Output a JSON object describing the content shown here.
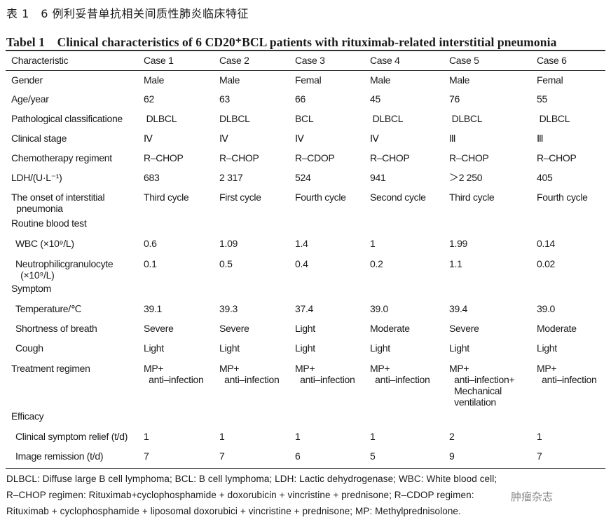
{
  "title_cn": "表 1　6 例利妥昔单抗相关间质性肺炎临床特征",
  "title_en": "Tabel 1　Clinical characteristics of 6 CD20⁺BCL patients with rituximab-related interstitial pneumonia",
  "columns": [
    "Characteristic",
    "Case 1",
    "Case 2",
    "Case 3",
    "Case 4",
    "Case 5",
    "Case 6"
  ],
  "rows": [
    {
      "label": [
        "Gender"
      ],
      "indent": false,
      "values": [
        [
          "Male"
        ],
        [
          "Male"
        ],
        [
          "Femal"
        ],
        [
          "Male"
        ],
        [
          "Male"
        ],
        [
          "Femal"
        ]
      ]
    },
    {
      "label": [
        "Age/year"
      ],
      "indent": false,
      "values": [
        [
          "62"
        ],
        [
          "63"
        ],
        [
          "66"
        ],
        [
          "45"
        ],
        [
          "76"
        ],
        [
          "55"
        ]
      ]
    },
    {
      "label": [
        "Pathological classificatione"
      ],
      "indent": false,
      "values": [
        [
          " DLBCL"
        ],
        [
          "DLBCL"
        ],
        [
          "BCL"
        ],
        [
          " DLBCL"
        ],
        [
          " DLBCL"
        ],
        [
          " DLBCL"
        ]
      ]
    },
    {
      "label": [
        "Clinical stage"
      ],
      "indent": false,
      "values": [
        [
          "Ⅳ"
        ],
        [
          "Ⅳ"
        ],
        [
          "Ⅳ"
        ],
        [
          "Ⅳ"
        ],
        [
          "Ⅲ"
        ],
        [
          "Ⅲ"
        ]
      ]
    },
    {
      "label": [
        "Chemotherapy regiment"
      ],
      "indent": false,
      "values": [
        [
          "R–CHOP"
        ],
        [
          "R–CHOP"
        ],
        [
          "R–CDOP"
        ],
        [
          "R–CHOP"
        ],
        [
          "R–CHOP"
        ],
        [
          "R–CHOP"
        ]
      ]
    },
    {
      "label": [
        "LDH/(U·L⁻¹)"
      ],
      "indent": false,
      "values": [
        [
          "683"
        ],
        [
          "2 317"
        ],
        [
          "524"
        ],
        [
          "941"
        ],
        [
          "＞2 250"
        ],
        [
          "405"
        ]
      ]
    },
    {
      "label": [
        "The onset of interstitial",
        "  pneumonia"
      ],
      "indent": false,
      "values": [
        [
          "Third cycle"
        ],
        [
          "First cycle"
        ],
        [
          "Fourth cycle"
        ],
        [
          "Second cycle"
        ],
        [
          "Third cycle"
        ],
        [
          "Fourth cycle"
        ]
      ]
    },
    {
      "label": [
        "Routine blood test"
      ],
      "indent": false,
      "values": []
    },
    {
      "label": [
        "WBC (×10⁹/L)"
      ],
      "indent": true,
      "values": [
        [
          "0.6"
        ],
        [
          "1.09"
        ],
        [
          "1.4"
        ],
        [
          "1"
        ],
        [
          "1.99"
        ],
        [
          "0.14"
        ]
      ]
    },
    {
      "label": [
        "Neutrophilicgranulocyte",
        "  (×10⁹/L)"
      ],
      "indent": true,
      "values": [
        [
          "0.1"
        ],
        [
          "0.5"
        ],
        [
          "0.4"
        ],
        [
          "0.2"
        ],
        [
          "1.1"
        ],
        [
          "0.02"
        ]
      ]
    },
    {
      "label": [
        "Symptom"
      ],
      "indent": false,
      "values": []
    },
    {
      "label": [
        "Temperature/℃"
      ],
      "indent": true,
      "values": [
        [
          "39.1"
        ],
        [
          "39.3"
        ],
        [
          "37.4"
        ],
        [
          "39.0"
        ],
        [
          "39.4"
        ],
        [
          "39.0"
        ]
      ]
    },
    {
      "label": [
        "Shortness of breath"
      ],
      "indent": true,
      "values": [
        [
          "Severe"
        ],
        [
          "Severe"
        ],
        [
          "Light"
        ],
        [
          "Moderate"
        ],
        [
          "Severe"
        ],
        [
          "Moderate"
        ]
      ]
    },
    {
      "label": [
        "Cough"
      ],
      "indent": true,
      "values": [
        [
          "Light"
        ],
        [
          "Light"
        ],
        [
          "Light"
        ],
        [
          "Light"
        ],
        [
          "Light"
        ],
        [
          "Light"
        ]
      ]
    },
    {
      "label": [
        "Treatment regimen"
      ],
      "indent": false,
      "values": [
        [
          "MP+",
          "  anti–infection"
        ],
        [
          "MP+",
          "  anti–infection"
        ],
        [
          "MP+",
          "  anti–infection"
        ],
        [
          "MP+",
          "  anti–infection"
        ],
        [
          "MP+",
          "  anti–infection+",
          "  Mechanical",
          "  ventilation"
        ],
        [
          "MP+",
          "  anti–infection"
        ]
      ]
    },
    {
      "label": [
        "Efficacy"
      ],
      "indent": false,
      "values": []
    },
    {
      "label": [
        "Clinical symptom relief (t/d)"
      ],
      "indent": true,
      "values": [
        [
          "1"
        ],
        [
          "1"
        ],
        [
          "1"
        ],
        [
          "1"
        ],
        [
          "2"
        ],
        [
          "1"
        ]
      ]
    },
    {
      "label": [
        "Image remission (t/d)"
      ],
      "indent": true,
      "values": [
        [
          "7"
        ],
        [
          "7"
        ],
        [
          "6"
        ],
        [
          "5"
        ],
        [
          "9"
        ],
        [
          "7"
        ]
      ]
    }
  ],
  "footnotes": [
    "DLBCL: Diffuse large B cell lymphoma; BCL: B cell lymphoma; LDH: Lactic dehydrogenase; WBC: White blood cell;",
    "R–CHOP regimen: Rituximab+cyclophosphamide + doxorubicin + vincristine + prednisone; R–CDOP regimen:",
    "Rituximab + cyclophosphamide + liposomal doxorubici + vincristine + prednisone; MP: Methylprednisolone."
  ],
  "watermark": "肿瘤杂志"
}
